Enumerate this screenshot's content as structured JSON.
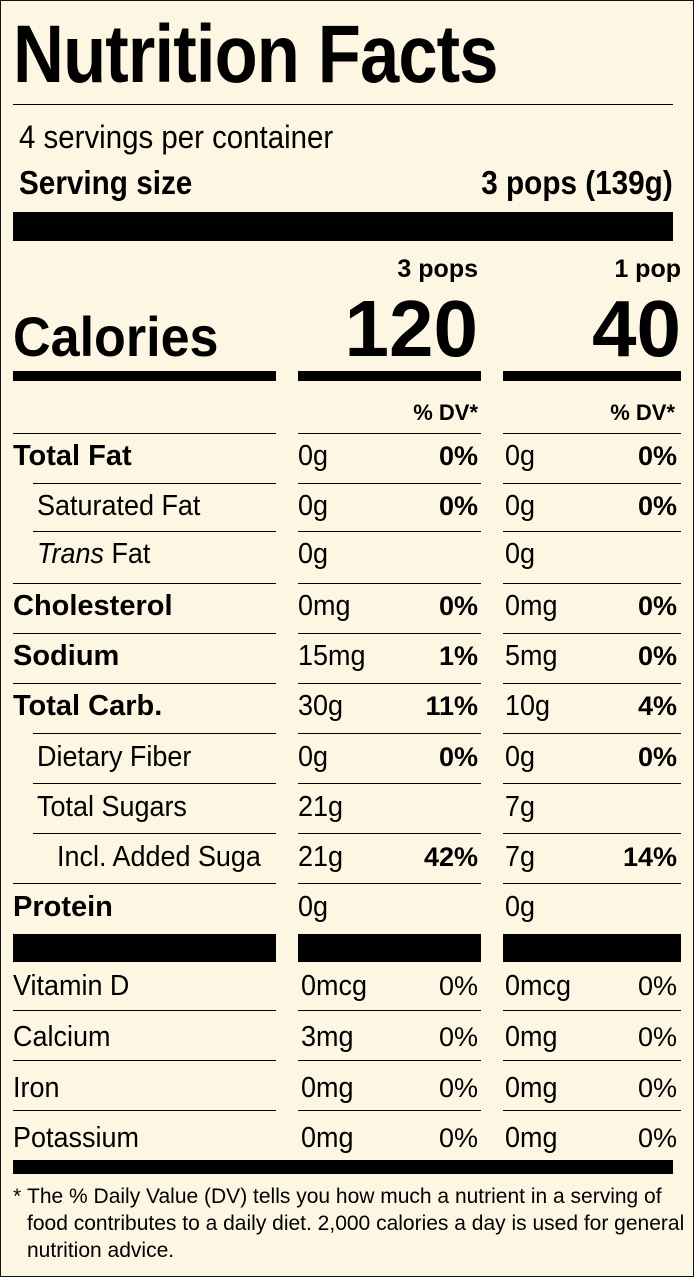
{
  "title": "Nutrition Facts",
  "servings_per_container": "4 servings per container",
  "serving_size": {
    "label": "Serving size",
    "value": "3 pops (139g)"
  },
  "columns": [
    {
      "header": "3 pops",
      "calories": "120",
      "dv_header": "% DV*"
    },
    {
      "header": "1 pop",
      "calories": "40",
      "dv_header": "% DV*"
    }
  ],
  "calories_label": "Calories",
  "nutrients": [
    {
      "name": "Total Fat",
      "style": "bold",
      "c1_amount": "0g",
      "c1_dv": "0%",
      "c2_amount": "0g",
      "c2_dv": "0%"
    },
    {
      "name": "Saturated Fat",
      "style": "indent",
      "c1_amount": "0g",
      "c1_dv": "0%",
      "c2_amount": "0g",
      "c2_dv": "0%"
    },
    {
      "name_italic": "Trans",
      "name": " Fat",
      "style": "indent",
      "c1_amount": "0g",
      "c1_dv": "",
      "c2_amount": "0g",
      "c2_dv": ""
    },
    {
      "name": "Cholesterol",
      "style": "bold",
      "c1_amount": "0mg",
      "c1_dv": "0%",
      "c2_amount": "0mg",
      "c2_dv": "0%"
    },
    {
      "name": "Sodium",
      "style": "bold",
      "c1_amount": "15mg",
      "c1_dv": "1%",
      "c2_amount": "5mg",
      "c2_dv": "0%"
    },
    {
      "name": "Total Carb.",
      "style": "bold",
      "c1_amount": "30g",
      "c1_dv": "11%",
      "c2_amount": "10g",
      "c2_dv": "4%"
    },
    {
      "name": "Dietary Fiber",
      "style": "indent",
      "c1_amount": "0g",
      "c1_dv": "0%",
      "c2_amount": "0g",
      "c2_dv": "0%"
    },
    {
      "name": "Total Sugars",
      "style": "indent",
      "c1_amount": "21g",
      "c1_dv": "",
      "c2_amount": "7g",
      "c2_dv": ""
    },
    {
      "name": "Incl. Added Sugars",
      "style": "indent2",
      "c1_amount": "21g",
      "c1_dv": "42%",
      "c2_amount": "7g",
      "c2_dv": "14%"
    },
    {
      "name": "Protein",
      "style": "bold",
      "c1_amount": "0g",
      "c1_dv": "",
      "c2_amount": "0g",
      "c2_dv": ""
    }
  ],
  "vitamins": [
    {
      "name": "Vitamin D",
      "c1_amount": "0mcg",
      "c1_dv": "0%",
      "c2_amount": "0mcg",
      "c2_dv": "0%"
    },
    {
      "name": "Calcium",
      "c1_amount": "3mg",
      "c1_dv": "0%",
      "c2_amount": "0mg",
      "c2_dv": "0%"
    },
    {
      "name": "Iron",
      "c1_amount": "0mg",
      "c1_dv": "0%",
      "c2_amount": "0mg",
      "c2_dv": "0%"
    },
    {
      "name": "Potassium",
      "c1_amount": "0mg",
      "c1_dv": "0%",
      "c2_amount": "0mg",
      "c2_dv": "0%"
    }
  ],
  "footnote": {
    "star": "*",
    "text": "The % Daily Value (DV) tells you how much a nutrient in a serving of food contributes to a daily diet. 2,000 calories a day is used for general nutrition advice."
  }
}
